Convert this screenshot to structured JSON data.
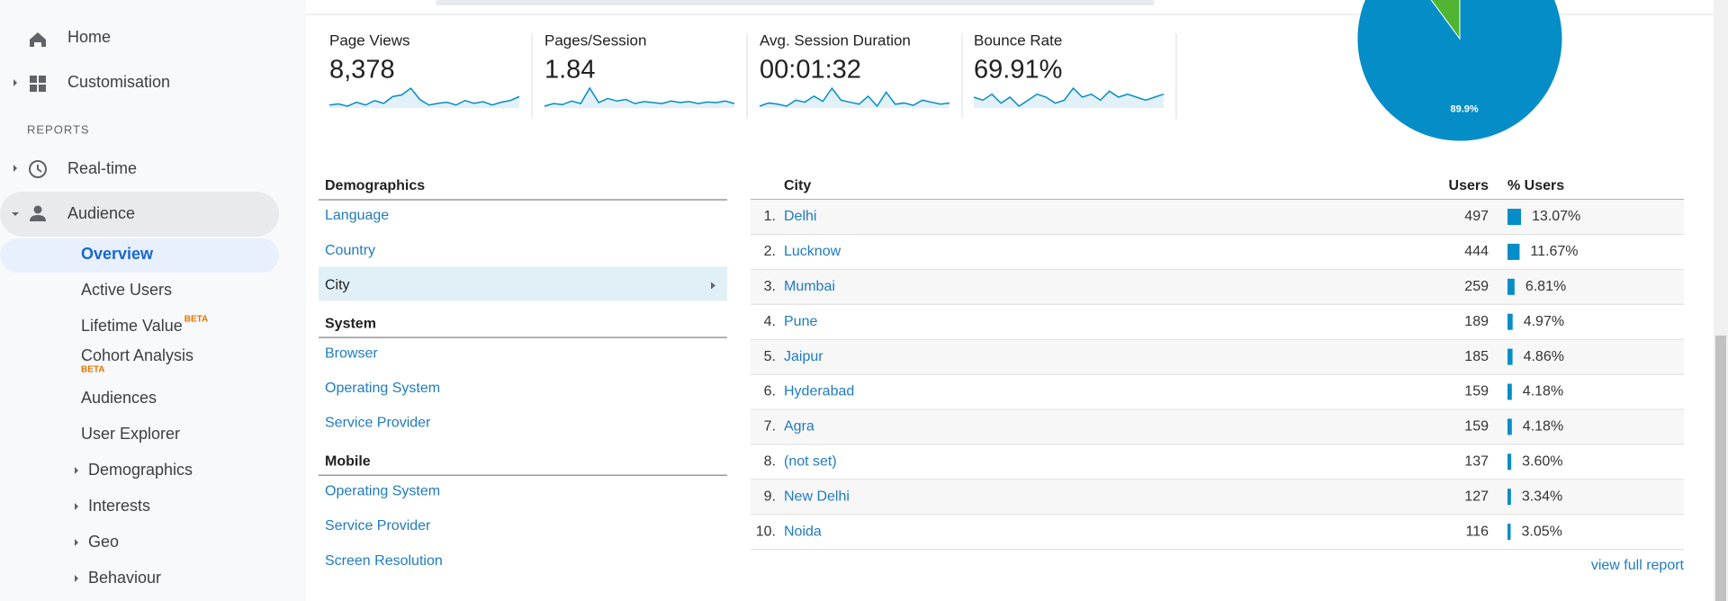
{
  "sidebar": {
    "top_items": [
      "Home",
      "Customisation"
    ],
    "section_label": "REPORTS",
    "report_items": [
      "Real-time",
      "Audience"
    ],
    "audience_items": [
      {
        "label": "Overview"
      },
      {
        "label": "Active Users"
      },
      {
        "label": "Lifetime Value",
        "badge": "BETA"
      },
      {
        "label": "Cohort Analysis",
        "badge": "BETA"
      },
      {
        "label": "Audiences"
      },
      {
        "label": "User Explorer"
      },
      {
        "label": "Demographics",
        "expandable": true
      },
      {
        "label": "Interests",
        "expandable": true
      },
      {
        "label": "Geo",
        "expandable": true
      },
      {
        "label": "Behaviour",
        "expandable": true
      }
    ]
  },
  "metrics": [
    {
      "label": "Page Views",
      "value": "8,378",
      "sparkline": [
        30,
        32,
        28,
        35,
        30,
        38,
        33,
        45,
        48,
        60,
        40,
        30,
        33,
        35,
        30,
        38,
        33,
        36,
        30,
        35,
        38,
        45
      ]
    },
    {
      "label": "Pages/Session",
      "value": "1.84",
      "sparkline": [
        35,
        40,
        38,
        45,
        40,
        70,
        42,
        50,
        45,
        48,
        40,
        44,
        42,
        40,
        45,
        42,
        44,
        40,
        43,
        42,
        45,
        40
      ]
    },
    {
      "label": "Avg. Session Duration",
      "value": "00:01:32",
      "sparkline": [
        30,
        38,
        35,
        30,
        45,
        40,
        55,
        42,
        75,
        45,
        40,
        35,
        55,
        30,
        65,
        35,
        38,
        32,
        45,
        40,
        35,
        38
      ]
    },
    {
      "label": "Bounce Rate",
      "value": "69.91%",
      "sparkline": [
        75,
        74,
        76,
        73,
        75,
        72,
        74,
        76,
        75,
        73,
        74,
        78,
        75,
        76,
        74,
        77,
        75,
        76,
        75,
        74,
        75,
        76
      ]
    }
  ],
  "pie": {
    "slices": [
      {
        "value": 89.9,
        "label": "89.9%",
        "color": "#058dc7"
      },
      {
        "value": 10.1,
        "color": "#50b432"
      }
    ]
  },
  "breakdown": {
    "groups": [
      {
        "title": "Demographics",
        "items": [
          "Language",
          "Country",
          "City"
        ]
      },
      {
        "title": "System",
        "items": [
          "Browser",
          "Operating System",
          "Service Provider"
        ]
      },
      {
        "title": "Mobile",
        "items": [
          "Operating System",
          "Service Provider",
          "Screen Resolution"
        ]
      }
    ],
    "selected": [
      0,
      2
    ]
  },
  "table": {
    "columns": [
      "City",
      "Users",
      "% Users"
    ],
    "rows": [
      {
        "rank": "1.",
        "city": "Delhi",
        "users": 497,
        "pct": 13.07,
        "pct_label": "13.07%"
      },
      {
        "rank": "2.",
        "city": "Lucknow",
        "users": 444,
        "pct": 11.67,
        "pct_label": "11.67%"
      },
      {
        "rank": "3.",
        "city": "Mumbai",
        "users": 259,
        "pct": 6.81,
        "pct_label": "6.81%"
      },
      {
        "rank": "4.",
        "city": "Pune",
        "users": 189,
        "pct": 4.97,
        "pct_label": "4.97%"
      },
      {
        "rank": "5.",
        "city": "Jaipur",
        "users": 185,
        "pct": 4.86,
        "pct_label": "4.86%"
      },
      {
        "rank": "6.",
        "city": "Hyderabad",
        "users": 159,
        "pct": 4.18,
        "pct_label": "4.18%"
      },
      {
        "rank": "7.",
        "city": "Agra",
        "users": 159,
        "pct": 4.18,
        "pct_label": "4.18%"
      },
      {
        "rank": "8.",
        "city": "(not set)",
        "users": 137,
        "pct": 3.6,
        "pct_label": "3.60%"
      },
      {
        "rank": "9.",
        "city": "New Delhi",
        "users": 127,
        "pct": 3.34,
        "pct_label": "3.34%"
      },
      {
        "rank": "10.",
        "city": "Noida",
        "users": 116,
        "pct": 3.05,
        "pct_label": "3.05%"
      }
    ],
    "bar_color": "#058dc7",
    "footer_link": "view full report"
  }
}
